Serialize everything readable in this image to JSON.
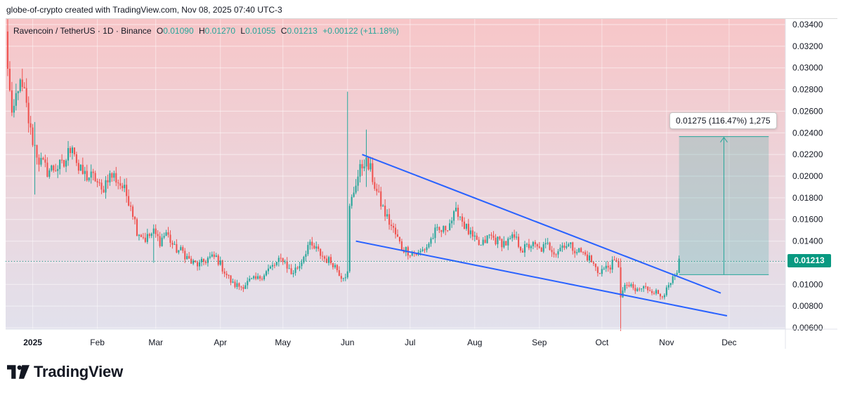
{
  "caption": "globe-of-crypto created with TradingView.com, Nov 08, 2025 07:40 UTC-3",
  "legend": {
    "symbol": "Ravencoin / TetherUS · 1D · Binance",
    "o_label": "O",
    "o_value": "0.01090",
    "h_label": "H",
    "h_value": "0.01270",
    "l_label": "L",
    "l_value": "0.01055",
    "c_label": "C",
    "c_value": "0.01213",
    "change": "+0.00122 (+11.18%)"
  },
  "measure_label": "0.01275 (116.47%) 1,275",
  "current_price_label": "0.01213",
  "brand": "TradingView",
  "colors": {
    "up": "#26a69a",
    "down": "#ef5350",
    "trendline": "#2962ff",
    "bg_top": "#f7c6c8",
    "bg_bottom": "#e2e1ec",
    "price_tag": "#089981"
  },
  "chart_data": {
    "type": "candlestick",
    "ylim": [
      0.0055,
      0.0345
    ],
    "y_ticks": [
      "0.03400",
      "0.03200",
      "0.03000",
      "0.02800",
      "0.02600",
      "0.02400",
      "0.02200",
      "0.02000",
      "0.01800",
      "0.01600",
      "0.01400",
      "0.01200",
      "0.01000",
      "0.00800",
      "0.00600"
    ],
    "x_start": "2024-12-19",
    "x_end": "2025-12-28",
    "x_ticks": [
      {
        "date": "2025-01-01",
        "label": "2025"
      },
      {
        "date": "2025-02-01",
        "label": "Feb"
      },
      {
        "date": "2025-03-01",
        "label": "Mar"
      },
      {
        "date": "2025-04-01",
        "label": "Apr"
      },
      {
        "date": "2025-05-01",
        "label": "May"
      },
      {
        "date": "2025-06-01",
        "label": "Jun"
      },
      {
        "date": "2025-07-01",
        "label": "Jul"
      },
      {
        "date": "2025-08-01",
        "label": "Aug"
      },
      {
        "date": "2025-09-01",
        "label": "Sep"
      },
      {
        "date": "2025-10-01",
        "label": "Oct"
      },
      {
        "date": "2025-11-01",
        "label": "Nov"
      },
      {
        "date": "2025-12-01",
        "label": "Dec"
      }
    ],
    "close_path": [
      [
        "2024-12-19",
        0.033
      ],
      [
        "2024-12-22",
        0.025
      ],
      [
        "2024-12-25",
        0.0285
      ],
      [
        "2024-12-28",
        0.0275
      ],
      [
        "2024-12-31",
        0.024
      ],
      [
        "2025-01-04",
        0.0215
      ],
      [
        "2025-01-08",
        0.0205
      ],
      [
        "2025-01-12",
        0.0208
      ],
      [
        "2025-01-16",
        0.021
      ],
      [
        "2025-01-20",
        0.0232
      ],
      [
        "2025-01-23",
        0.0205
      ],
      [
        "2025-01-27",
        0.02
      ],
      [
        "2025-01-31",
        0.0198
      ],
      [
        "2025-02-03",
        0.0185
      ],
      [
        "2025-02-06",
        0.02
      ],
      [
        "2025-02-09",
        0.02
      ],
      [
        "2025-02-13",
        0.019
      ],
      [
        "2025-02-17",
        0.0175
      ],
      [
        "2025-02-20",
        0.015
      ],
      [
        "2025-02-24",
        0.0142
      ],
      [
        "2025-02-28",
        0.0148
      ],
      [
        "2025-03-03",
        0.014
      ],
      [
        "2025-03-06",
        0.0148
      ],
      [
        "2025-03-10",
        0.0133
      ],
      [
        "2025-03-14",
        0.013
      ],
      [
        "2025-03-18",
        0.012
      ],
      [
        "2025-03-22",
        0.0118
      ],
      [
        "2025-03-26",
        0.0124
      ],
      [
        "2025-03-30",
        0.0125
      ],
      [
        "2025-04-03",
        0.0112
      ],
      [
        "2025-04-07",
        0.01
      ],
      [
        "2025-04-11",
        0.0098
      ],
      [
        "2025-04-15",
        0.0103
      ],
      [
        "2025-04-19",
        0.0105
      ],
      [
        "2025-04-23",
        0.0112
      ],
      [
        "2025-04-27",
        0.0118
      ],
      [
        "2025-05-01",
        0.0124
      ],
      [
        "2025-05-05",
        0.011
      ],
      [
        "2025-05-09",
        0.0118
      ],
      [
        "2025-05-13",
        0.0136
      ],
      [
        "2025-05-17",
        0.0132
      ],
      [
        "2025-05-21",
        0.0124
      ],
      [
        "2025-05-25",
        0.012
      ],
      [
        "2025-05-29",
        0.0108
      ],
      [
        "2025-06-01",
        0.011
      ],
      [
        "2025-06-02",
        0.017
      ],
      [
        "2025-06-05",
        0.0195
      ],
      [
        "2025-06-09",
        0.0215
      ],
      [
        "2025-06-12",
        0.0205
      ],
      [
        "2025-06-15",
        0.0185
      ],
      [
        "2025-06-19",
        0.0165
      ],
      [
        "2025-06-23",
        0.015
      ],
      [
        "2025-06-27",
        0.0134
      ],
      [
        "2025-07-01",
        0.013
      ],
      [
        "2025-07-05",
        0.0128
      ],
      [
        "2025-07-09",
        0.0135
      ],
      [
        "2025-07-13",
        0.0148
      ],
      [
        "2025-07-17",
        0.015
      ],
      [
        "2025-07-21",
        0.016
      ],
      [
        "2025-07-24",
        0.0168
      ],
      [
        "2025-07-27",
        0.0155
      ],
      [
        "2025-07-31",
        0.0142
      ],
      [
        "2025-08-04",
        0.0135
      ],
      [
        "2025-08-08",
        0.0145
      ],
      [
        "2025-08-12",
        0.014
      ],
      [
        "2025-08-16",
        0.0138
      ],
      [
        "2025-08-20",
        0.0143
      ],
      [
        "2025-08-24",
        0.0132
      ],
      [
        "2025-08-28",
        0.0137
      ],
      [
        "2025-09-01",
        0.0132
      ],
      [
        "2025-09-05",
        0.0136
      ],
      [
        "2025-09-09",
        0.013
      ],
      [
        "2025-09-13",
        0.0138
      ],
      [
        "2025-09-17",
        0.0134
      ],
      [
        "2025-09-21",
        0.013
      ],
      [
        "2025-09-25",
        0.0124
      ],
      [
        "2025-09-29",
        0.0112
      ],
      [
        "2025-10-03",
        0.0115
      ],
      [
        "2025-10-07",
        0.012
      ],
      [
        "2025-10-09",
        0.0118
      ],
      [
        "2025-10-10",
        0.009
      ],
      [
        "2025-10-13",
        0.01
      ],
      [
        "2025-10-17",
        0.0094
      ],
      [
        "2025-10-21",
        0.0097
      ],
      [
        "2025-10-25",
        0.0095
      ],
      [
        "2025-10-29",
        0.009
      ],
      [
        "2025-11-01",
        0.0094
      ],
      [
        "2025-11-04",
        0.0104
      ],
      [
        "2025-11-06",
        0.0109
      ],
      [
        "2025-11-07",
        0.0121
      ]
    ],
    "spikes": [
      {
        "date": "2025-06-01",
        "high": 0.0278,
        "low": 0.0105
      },
      {
        "date": "2025-06-10",
        "high": 0.0243,
        "low": 0.019
      },
      {
        "date": "2025-10-10",
        "high": 0.0124,
        "low": 0.0057
      },
      {
        "date": "2025-01-02",
        "high": 0.025,
        "low": 0.0183
      },
      {
        "date": "2025-02-28",
        "high": 0.0155,
        "low": 0.012
      }
    ],
    "trendlines": [
      {
        "from": [
          "2025-06-08",
          0.022
        ],
        "to": [
          "2025-11-27",
          0.0092
        ]
      },
      {
        "from": [
          "2025-06-05",
          0.014
        ],
        "to": [
          "2025-11-30",
          0.0071
        ]
      }
    ],
    "measure": {
      "from_date": "2025-11-07",
      "to_date": "2025-12-20",
      "base": 0.0109,
      "top": 0.02365
    },
    "current_price": 0.01213
  }
}
